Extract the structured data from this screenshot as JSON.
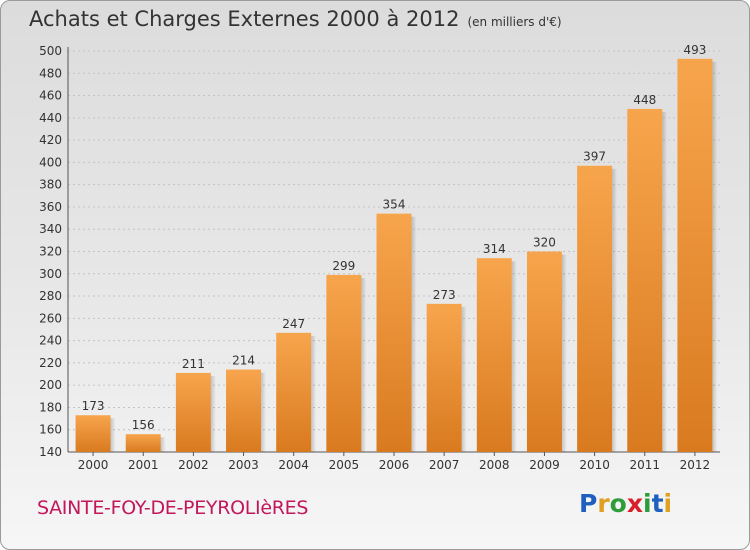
{
  "chart_data": {
    "type": "bar",
    "title": "Achats et Charges Externes 2000 à 2012",
    "subtitle": "(en milliers d'€)",
    "categories": [
      "2000",
      "2001",
      "2002",
      "2003",
      "2004",
      "2005",
      "2006",
      "2007",
      "2008",
      "2009",
      "2010",
      "2011",
      "2012"
    ],
    "values": [
      173,
      156,
      211,
      214,
      247,
      299,
      354,
      273,
      314,
      320,
      397,
      448,
      493
    ],
    "ylim": [
      140,
      500
    ],
    "yticks": [
      140,
      160,
      180,
      200,
      220,
      240,
      260,
      280,
      300,
      320,
      340,
      360,
      380,
      400,
      420,
      440,
      460,
      480,
      500
    ],
    "grid": true,
    "bar_color_light": "#f7a54d",
    "bar_color_dark": "#d97a1f"
  },
  "footer": {
    "commune": "SAINTE-FOY-DE-PEYROLIèRES",
    "logo_letters": [
      "P",
      "r",
      "o",
      "x",
      "i",
      "t",
      "i"
    ],
    "logo_colors": [
      "#1f5fbf",
      "#e0a020",
      "#2e9c3a",
      "#d8202a",
      "#2e9c3a",
      "#1f5fbf",
      "#e0a020"
    ]
  }
}
